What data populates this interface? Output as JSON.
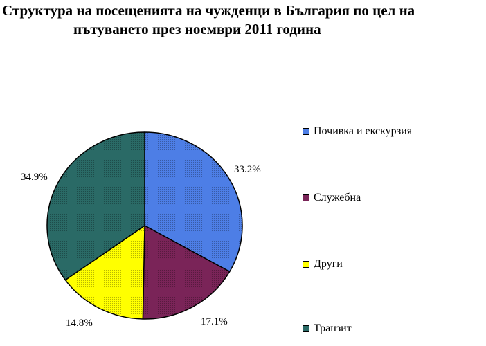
{
  "chart_data": {
    "type": "pie",
    "title_line1": "Структура на посещенията на чужденци в България по цел на",
    "title_line2": "пътуването през ноември 2011 година",
    "categories": [
      "Почивка и екскурзия",
      "Служебна",
      "Други",
      "Транзит"
    ],
    "values": [
      33.2,
      17.1,
      14.8,
      34.9
    ],
    "value_labels": [
      "33.2%",
      "17.1%",
      "14.8%",
      "34.9%"
    ],
    "colors": [
      "#4d7ee6",
      "#7a2458",
      "#ffff00",
      "#2a6a66"
    ],
    "legend_position": "right",
    "start": "12 o'clock",
    "direction": "clockwise",
    "slice_pattern": "stippled"
  }
}
